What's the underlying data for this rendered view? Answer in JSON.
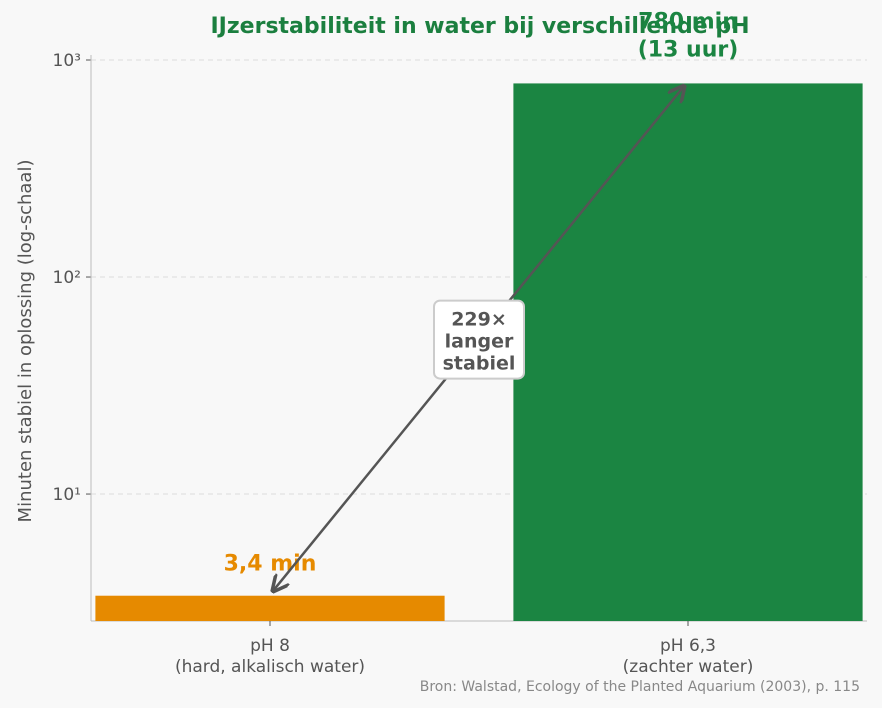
{
  "chart_data": {
    "type": "bar",
    "title": "IJzerstabiliteit in water bij verschillende pH",
    "ylabel": "Minuten stabiel in oplossing (log-schaal)",
    "categories": [
      "pH 8\n(hard, alkalisch water)",
      "pH 6,3\n(zachter water)"
    ],
    "values": [
      3.4,
      780
    ],
    "value_labels": [
      "3,4 min",
      "780 min\n(13 uur)"
    ],
    "colors": [
      "#e68a00",
      "#1b8542"
    ],
    "ylim": [
      2.6,
      1000
    ],
    "log_scale": true,
    "yticks": [
      {
        "value": 10,
        "label": "10¹"
      },
      {
        "value": 100,
        "label": "10²"
      },
      {
        "value": 1000,
        "label": "10³"
      }
    ],
    "grid": true,
    "annotation": "229×\nlanger\nstabiel",
    "source": "Bron: Walstad, Ecology of the Planted Aquarium (2003), p. 115"
  }
}
